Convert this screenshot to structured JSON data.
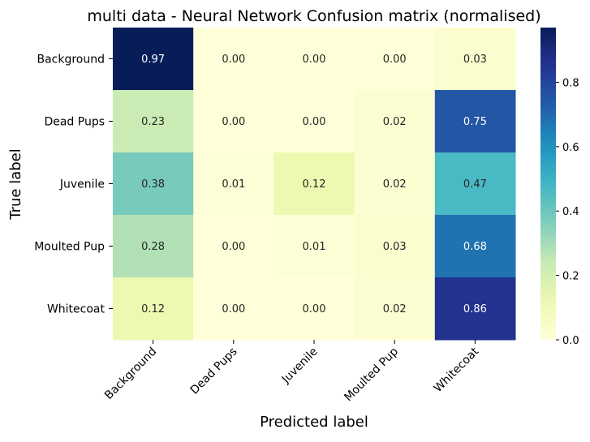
{
  "chart_data": {
    "type": "heatmap",
    "title": "multi data - Neural Network Confusion matrix (normalised)",
    "xlabel": "Predicted label",
    "ylabel": "True label",
    "x_categories": [
      "Background",
      "Dead Pups",
      "Juvenile",
      "Moulted Pup",
      "Whitecoat"
    ],
    "y_categories": [
      "Background",
      "Dead Pups",
      "Juvenile",
      "Moulted Pup",
      "Whitecoat"
    ],
    "values": [
      [
        0.97,
        0.0,
        0.0,
        0.0,
        0.03
      ],
      [
        0.23,
        0.0,
        0.0,
        0.02,
        0.75
      ],
      [
        0.38,
        0.01,
        0.12,
        0.02,
        0.47
      ],
      [
        0.28,
        0.0,
        0.01,
        0.03,
        0.68
      ],
      [
        0.12,
        0.0,
        0.0,
        0.02,
        0.86
      ]
    ],
    "value_format": "0.00",
    "colormap": "YlGnBu",
    "colorbar": {
      "range": [
        0,
        0.97
      ],
      "ticks": [
        0.0,
        0.2,
        0.4,
        0.6,
        0.8
      ],
      "tick_labels": [
        "0.0",
        "0.2",
        "0.4",
        "0.6",
        "0.8"
      ]
    },
    "grid": false,
    "legend": "colorbar-right"
  }
}
